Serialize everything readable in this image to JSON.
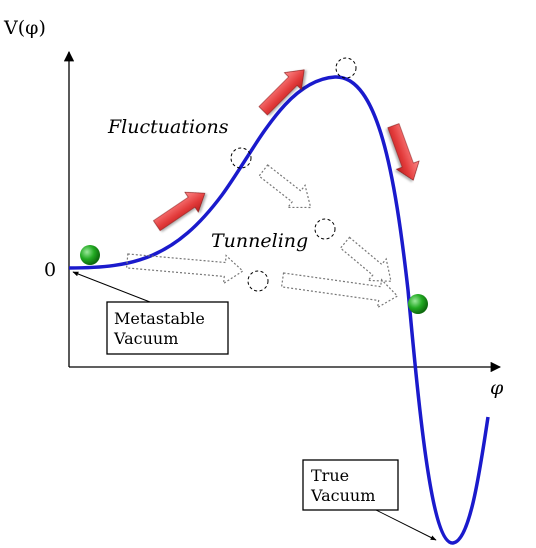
{
  "axes": {
    "y_label": "V(φ)",
    "x_label": "φ",
    "zero_label": "0"
  },
  "labels": {
    "fluctuations": "Fluctuations",
    "tunneling": "Tunneling"
  },
  "boxes": {
    "metastable": {
      "line1": "Metastable",
      "line2": "Vacuum"
    },
    "true": {
      "line1": "True",
      "line2": "Vacuum"
    }
  },
  "colors": {
    "curve": "#1a1acc",
    "ball": "#22aa22",
    "red_arrow": "#e23a3a",
    "axis": "#000000"
  }
}
